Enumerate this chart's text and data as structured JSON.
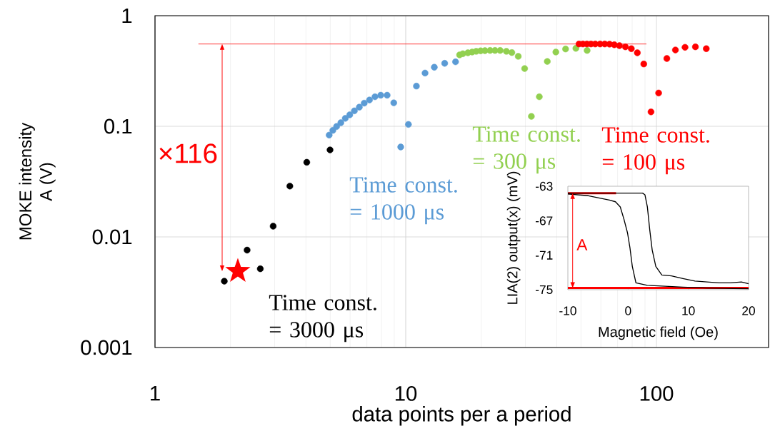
{
  "chart_data": [
    {
      "type": "scatter",
      "xlabel": "data points per a period",
      "ylabel": "MOKE intensity A (V)",
      "log": "xy",
      "xlim": [
        1,
        280
      ],
      "ylim": [
        0.001,
        1
      ],
      "xticks": [
        1,
        10,
        100
      ],
      "yticks": [
        0.001,
        0.01,
        0.1,
        1
      ],
      "grid": true,
      "marker": "circle",
      "series": [
        {
          "color": "#000000",
          "x": [
            1.89,
            2.33,
            2.63,
            2.96,
            3.45,
            4.03,
            4.99
          ],
          "values": [
            0.00398,
            0.0076,
            0.00515,
            0.0125,
            0.0288,
            0.0473,
            0.0612
          ]
        },
        {
          "color": "#5b9bd5",
          "x": [
            4.95,
            5.12,
            5.3,
            5.51,
            5.74,
            5.98,
            6.24,
            6.53,
            6.83,
            7.17,
            7.54,
            7.95,
            8.43,
            8.96,
            9.55,
            10.25,
            11.03,
            11.94,
            13.0,
            14.3,
            15.8
          ],
          "values": [
            0.0833,
            0.0919,
            0.0996,
            0.1077,
            0.118,
            0.127,
            0.138,
            0.149,
            0.162,
            0.173,
            0.185,
            0.191,
            0.191,
            0.163,
            0.065,
            0.104,
            0.231,
            0.303,
            0.342,
            0.371,
            0.383
          ]
        },
        {
          "color": "#92d050",
          "x": [
            16.4,
            16.9,
            17.7,
            18.4,
            19.1,
            19.9,
            20.7,
            21.7,
            22.7,
            23.8,
            25.2,
            26.5,
            28.1,
            29.8,
            31.7,
            34.1,
            36.7,
            39.7,
            43.4,
            47.7,
            52.9
          ],
          "values": [
            0.442,
            0.453,
            0.462,
            0.469,
            0.476,
            0.481,
            0.483,
            0.485,
            0.485,
            0.485,
            0.476,
            0.464,
            0.429,
            0.333,
            0.123,
            0.185,
            0.386,
            0.469,
            0.5,
            0.507,
            0.485
          ]
        },
        {
          "color": "#ff0000",
          "x": [
            49.1,
            50.9,
            52.8,
            54.8,
            57.0,
            59.6,
            62.2,
            65.0,
            67.9,
            71.2,
            75.2,
            79.4,
            83.9,
            89.0,
            95.1,
            102,
            110,
            119,
            130,
            143,
            158
          ],
          "values": [
            0.555,
            0.555,
            0.555,
            0.555,
            0.555,
            0.555,
            0.555,
            0.553,
            0.546,
            0.536,
            0.523,
            0.503,
            0.462,
            0.366,
            0.135,
            0.2,
            0.41,
            0.49,
            0.518,
            0.523,
            0.503
          ]
        },
        {
          "color": "#ff0000",
          "marker": "star",
          "x": [
            2.14
          ],
          "values": [
            0.0049
          ]
        },
        {
          "type": "line",
          "marker": "none",
          "color": "#ff0000",
          "x": [
            1.49,
            91.2
          ],
          "values": [
            0.555,
            0.555
          ]
        }
      ],
      "annotations": [
        "Time const. = 3000 μs",
        "Time const. = 1000 μs",
        "Time const. = 300 μs",
        "Time const. = 100 μs",
        "×116"
      ]
    },
    {
      "type": "line",
      "xlabel": "Magnetic field (Oe)",
      "ylabel": "LIA(2) output(x) (mV)",
      "xlim": [
        -10,
        20
      ],
      "ylim": [
        -75,
        -63
      ],
      "xticks": [
        -10,
        0,
        10,
        20
      ],
      "yticks": [
        -75,
        -71,
        -67,
        -63
      ],
      "series": [
        {
          "color": "#ff0000",
          "x": [
            -10,
            -2
          ],
          "values": [
            -63.8,
            -63.8
          ]
        },
        {
          "color": "#ff0000",
          "x": [
            -10,
            20
          ],
          "values": [
            -74.8,
            -74.8
          ]
        },
        {
          "color": "#000000",
          "x": [
            -10,
            2.4,
            2.8,
            3.2,
            3.6,
            4.0,
            4.6,
            5.6,
            7.2,
            9.1,
            11.1,
            15.1,
            17.0,
            18.8,
            20
          ],
          "values": [
            -63.8,
            -63.8,
            -64.0,
            -65.4,
            -68.1,
            -70.4,
            -72.3,
            -73.3,
            -73.4,
            -73.7,
            -74.0,
            -74.2,
            -74.2,
            -74.1,
            -74.3
          ]
        },
        {
          "color": "#000000",
          "x": [
            -10,
            -6.6,
            -3.1,
            -2.1,
            -1.3,
            -0.7,
            -0.1,
            0.3,
            0.7,
            1.3,
            3.2,
            9.1,
            13.1,
            20
          ],
          "values": [
            -63.9,
            -64.1,
            -64.6,
            -64.8,
            -65.4,
            -66.8,
            -68.4,
            -70.1,
            -72.3,
            -74.2,
            -74.5,
            -74.7,
            -74.8,
            -74.9
          ]
        }
      ],
      "annotations": [
        "A"
      ]
    }
  ]
}
